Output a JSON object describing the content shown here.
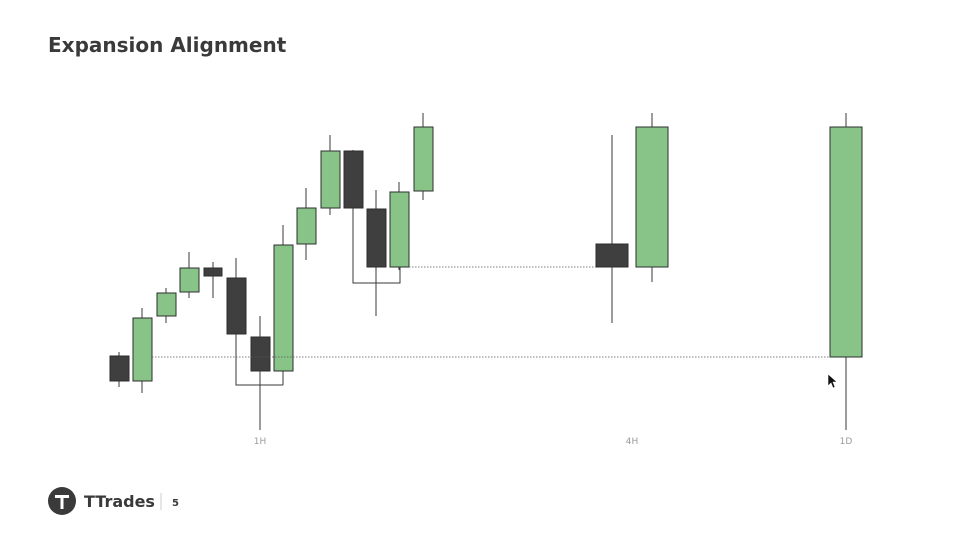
{
  "header": {
    "title": "Expansion Alignment"
  },
  "timeframes": [
    "1H",
    "4H",
    "1D"
  ],
  "footer": {
    "brand": "TTrades",
    "page": 5
  }
}
